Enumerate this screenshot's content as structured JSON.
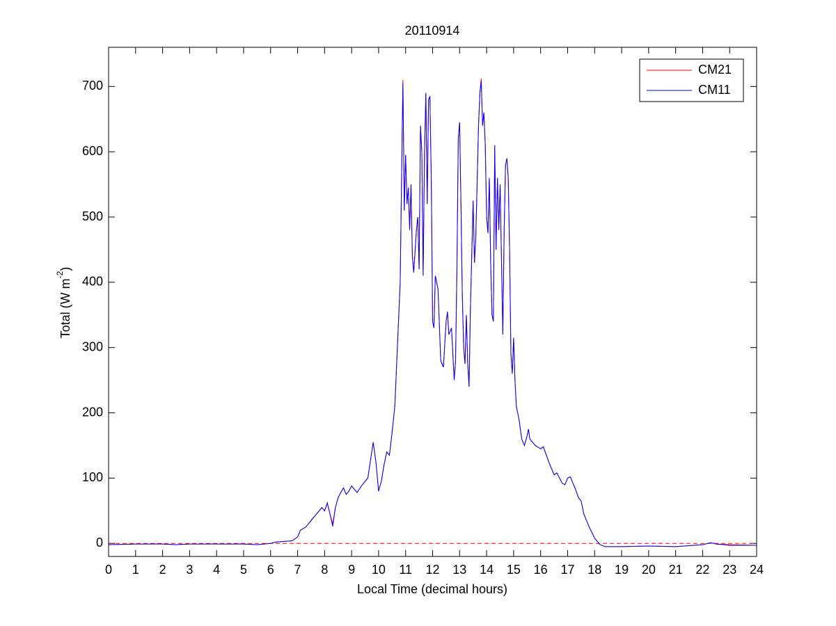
{
  "chart_data": {
    "type": "line",
    "title": "20110914",
    "x_label": "Local Time (decimal hours)",
    "y_label": [
      "Total (W m",
      "-2",
      ")"
    ],
    "x": [
      0,
      1,
      2,
      2.5,
      3,
      4,
      5,
      5.5,
      6,
      6.2,
      6.5,
      6.8,
      7,
      7.1,
      7.3,
      7.5,
      7.7,
      7.9,
      8,
      8.1,
      8.2,
      8.3,
      8.4,
      8.5,
      8.6,
      8.7,
      8.8,
      8.9,
      9,
      9.2,
      9.4,
      9.6,
      9.8,
      9.9,
      10,
      10.1,
      10.2,
      10.3,
      10.4,
      10.5,
      10.6,
      10.7,
      10.8,
      10.85,
      10.9,
      10.95,
      11,
      11.05,
      11.1,
      11.15,
      11.2,
      11.25,
      11.3,
      11.4,
      11.45,
      11.5,
      11.55,
      11.6,
      11.65,
      11.7,
      11.75,
      11.8,
      11.85,
      11.9,
      11.95,
      12,
      12.05,
      12.1,
      12.2,
      12.3,
      12.4,
      12.5,
      12.55,
      12.6,
      12.7,
      12.8,
      12.85,
      12.9,
      12.95,
      13,
      13.05,
      13.1,
      13.15,
      13.2,
      13.25,
      13.3,
      13.35,
      13.4,
      13.5,
      13.55,
      13.6,
      13.7,
      13.75,
      13.8,
      13.85,
      13.9,
      13.95,
      14,
      14.05,
      14.1,
      14.15,
      14.2,
      14.25,
      14.3,
      14.35,
      14.4,
      14.45,
      14.5,
      14.6,
      14.65,
      14.7,
      14.75,
      14.8,
      14.85,
      14.9,
      14.95,
      15,
      15.05,
      15.1,
      15.2,
      15.3,
      15.4,
      15.5,
      15.55,
      15.6,
      15.8,
      16,
      16.1,
      16.3,
      16.5,
      16.6,
      16.8,
      16.9,
      17,
      17.1,
      17.3,
      17.4,
      17.5,
      17.6,
      17.8,
      18,
      18.2,
      18.4,
      19,
      20,
      21,
      22,
      22.3,
      22.5,
      23,
      24
    ],
    "series": [
      {
        "name": "CM21",
        "color": "#ff0000",
        "values": [
          -2,
          -1,
          -1,
          -2,
          -1,
          -1,
          -1,
          -2,
          0,
          2,
          3,
          4,
          10,
          20,
          25,
          35,
          45,
          55,
          50,
          62,
          45,
          30,
          55,
          70,
          78,
          85,
          75,
          80,
          88,
          78,
          90,
          100,
          155,
          125,
          80,
          95,
          120,
          140,
          135,
          170,
          210,
          305,
          400,
          560,
          710,
          510,
          595,
          520,
          545,
          480,
          550,
          440,
          415,
          480,
          500,
          420,
          640,
          600,
          410,
          600,
          690,
          520,
          680,
          685,
          560,
          340,
          330,
          410,
          390,
          280,
          270,
          340,
          355,
          320,
          330,
          250,
          280,
          420,
          620,
          645,
          520,
          380,
          300,
          275,
          350,
          275,
          240,
          360,
          525,
          430,
          470,
          640,
          690,
          712,
          640,
          660,
          610,
          500,
          475,
          560,
          430,
          350,
          340,
          610,
          450,
          560,
          480,
          550,
          320,
          480,
          580,
          590,
          560,
          450,
          290,
          260,
          315,
          250,
          210,
          190,
          160,
          150,
          165,
          175,
          160,
          150,
          145,
          148,
          125,
          105,
          108,
          92,
          90,
          100,
          102,
          82,
          70,
          65,
          45,
          25,
          8,
          -2,
          -5,
          -5,
          -4,
          -5,
          -2,
          1,
          -1,
          -2,
          -3
        ]
      },
      {
        "name": "CM11",
        "color": "#0000ff",
        "values": [
          -2,
          -1,
          -1,
          -2,
          -1,
          -1,
          -1,
          -2,
          0,
          2,
          3,
          4,
          10,
          20,
          25,
          35,
          45,
          55,
          50,
          62,
          45,
          26,
          55,
          70,
          78,
          85,
          75,
          80,
          88,
          78,
          90,
          100,
          155,
          125,
          80,
          95,
          120,
          140,
          135,
          170,
          210,
          305,
          400,
          560,
          705,
          510,
          595,
          520,
          545,
          480,
          550,
          440,
          415,
          480,
          500,
          420,
          640,
          600,
          410,
          600,
          690,
          520,
          680,
          685,
          560,
          340,
          330,
          410,
          390,
          280,
          270,
          340,
          355,
          320,
          330,
          250,
          280,
          420,
          620,
          645,
          520,
          380,
          300,
          275,
          350,
          275,
          240,
          360,
          525,
          430,
          470,
          640,
          690,
          708,
          640,
          660,
          610,
          500,
          475,
          560,
          430,
          350,
          340,
          610,
          450,
          560,
          480,
          550,
          320,
          480,
          580,
          590,
          560,
          450,
          290,
          260,
          315,
          250,
          210,
          190,
          160,
          150,
          165,
          175,
          160,
          150,
          145,
          148,
          125,
          105,
          108,
          92,
          90,
          100,
          102,
          82,
          70,
          65,
          45,
          25,
          8,
          -2,
          -5,
          -5,
          -4,
          -5,
          -2,
          1,
          -1,
          -3,
          -3
        ]
      }
    ],
    "reference_line": {
      "value": 0,
      "color": "#ff0000",
      "style": "dashed"
    },
    "xlim": [
      0,
      24
    ],
    "xticks": [
      0,
      1,
      2,
      3,
      4,
      5,
      6,
      7,
      8,
      9,
      10,
      11,
      12,
      13,
      14,
      15,
      16,
      17,
      18,
      19,
      20,
      21,
      22,
      23,
      24
    ],
    "ylim": [
      -20,
      760
    ],
    "yticks": [
      0,
      100,
      200,
      300,
      400,
      500,
      600,
      700
    ],
    "grid": false,
    "legend": "upper-right"
  }
}
